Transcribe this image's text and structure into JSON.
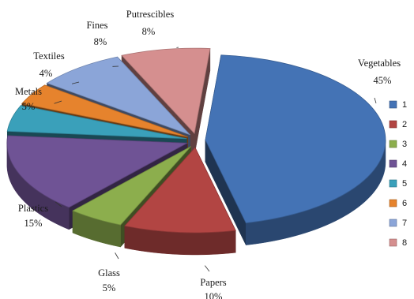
{
  "chart_data": {
    "type": "pie",
    "style": "3d-exploded",
    "slices": [
      {
        "name": "Vegetables",
        "value": 45,
        "label": "45%",
        "legend": "1",
        "color": "#4473b5"
      },
      {
        "name": "Papers",
        "value": 10,
        "label": "10%",
        "legend": "2",
        "color": "#b24543"
      },
      {
        "name": "Glass",
        "value": 5,
        "label": "5%",
        "legend": "3",
        "color": "#8cae4d"
      },
      {
        "name": "Plastics",
        "value": 15,
        "label": "15%",
        "legend": "4",
        "color": "#6f5395"
      },
      {
        "name": "Metals",
        "value": 5,
        "label": "5%",
        "legend": "5",
        "color": "#3aa0ba"
      },
      {
        "name": "Textiles",
        "value": 4,
        "label": "4%",
        "legend": "6",
        "color": "#e6832d"
      },
      {
        "name": "Fines",
        "value": 8,
        "label": "8%",
        "legend": "7",
        "color": "#8ba5d8"
      },
      {
        "name": "Putrescibles",
        "value": 8,
        "label": "8%",
        "legend": "8",
        "color": "#d58f8f"
      }
    ],
    "legend_position": "right"
  }
}
